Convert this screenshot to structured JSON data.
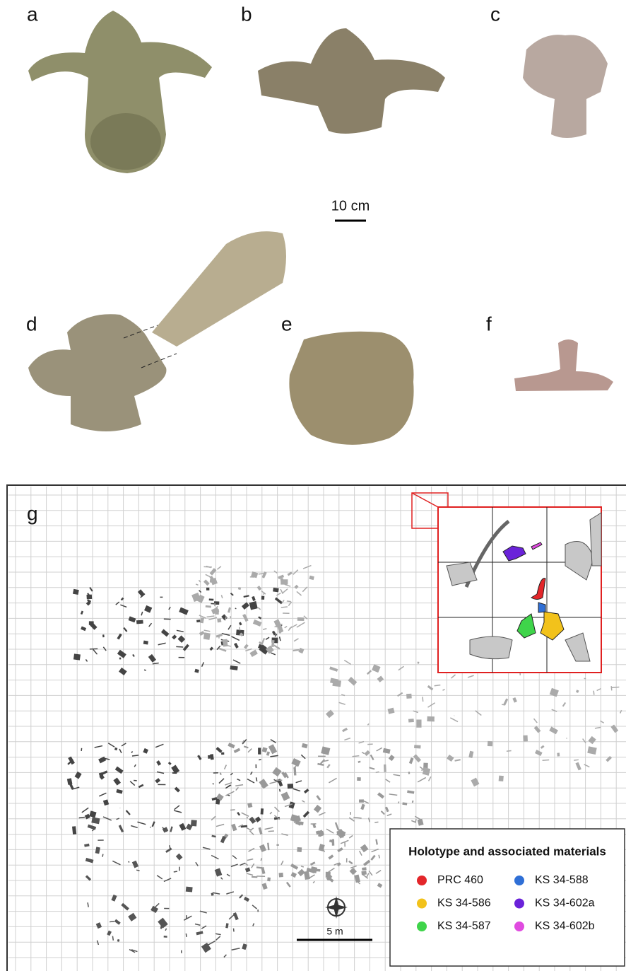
{
  "panels": [
    "a",
    "b",
    "c",
    "d",
    "e",
    "f"
  ],
  "scale_top": "10 cm",
  "map": {
    "label": "g",
    "scale": "5 m",
    "legend": {
      "title": "Holotype and associated materials",
      "items": [
        {
          "name": "PRC 460",
          "color": "#e3262a"
        },
        {
          "name": "KS 34-586",
          "color": "#f2c21b"
        },
        {
          "name": "KS 34-587",
          "color": "#3fd44a"
        },
        {
          "name": "KS 34-588",
          "color": "#2f6fd6"
        },
        {
          "name": "KS 34-602a",
          "color": "#6a22d9"
        },
        {
          "name": "KS 34-602b",
          "color": "#e04be0"
        }
      ]
    }
  }
}
